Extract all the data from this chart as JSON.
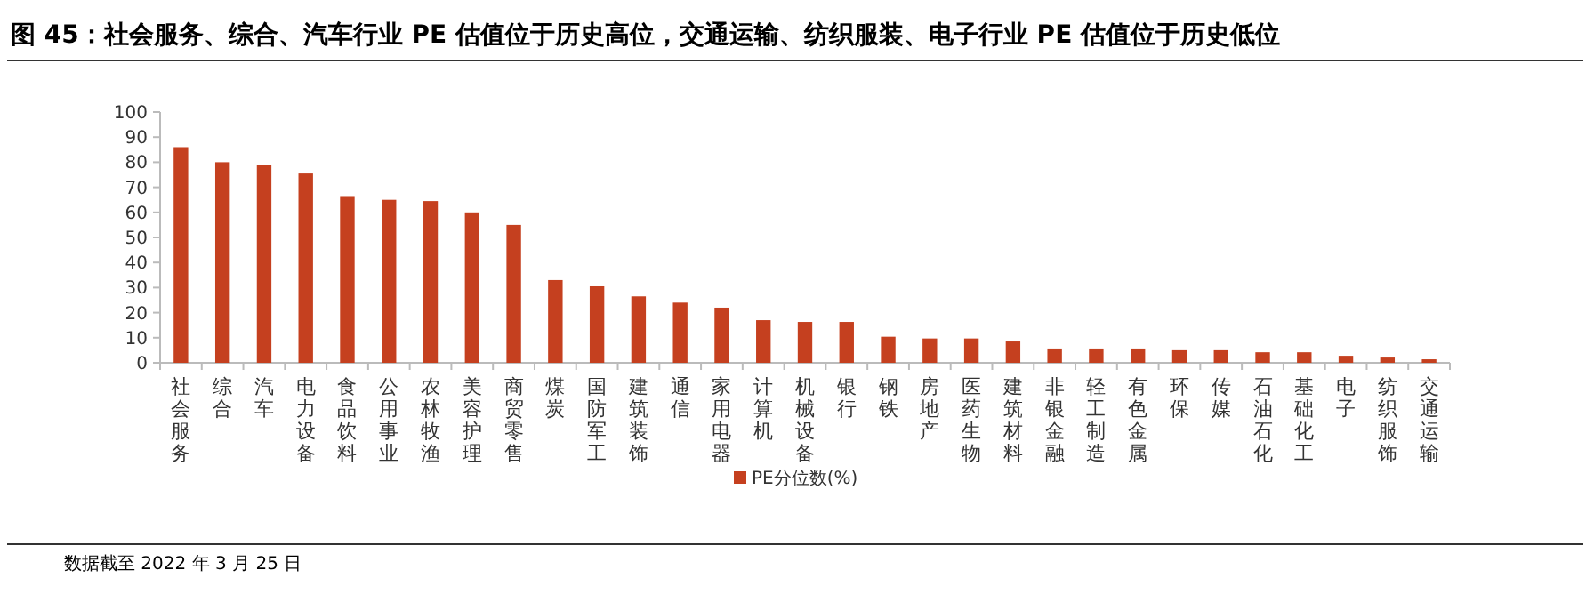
{
  "chart_data": {
    "type": "bar",
    "title": "图 45：社会服务、综合、汽车行业 PE 估值位于历史高位，交通运输、纺织服装、电子行业 PE 估值位于历史低位",
    "categories": [
      "社会服务",
      "综合",
      "汽车",
      "电力设备",
      "食品饮料",
      "公用事业",
      "农林牧渔",
      "美容护理",
      "商贸零售",
      "煤炭",
      "国防军工",
      "建筑装饰",
      "通信",
      "家用电器",
      "计算机",
      "机械设备",
      "银行",
      "钢铁",
      "房地产",
      "医药生物",
      "建筑材料",
      "非银金融",
      "轻工制造",
      "有色金属",
      "环保",
      "传媒",
      "石油石化",
      "基础化工",
      "电子",
      "纺织服饰",
      "交通运输"
    ],
    "series": [
      {
        "name": "PE分位数(%)",
        "color": "#c5401f",
        "values": [
          86,
          80,
          79,
          75.5,
          66.5,
          65,
          64.5,
          60,
          55,
          33,
          30.5,
          26.5,
          24,
          22,
          17,
          16.3,
          16.3,
          10.4,
          9.7,
          9.7,
          8.5,
          5.7,
          5.7,
          5.7,
          5,
          5,
          4.2,
          4.2,
          2.8,
          2.1,
          1.4
        ]
      }
    ],
    "ylim": [
      0,
      100
    ],
    "yticks": [
      0,
      10,
      20,
      30,
      40,
      50,
      60,
      70,
      80,
      90,
      100
    ],
    "legend": "bottom",
    "annotations": [
      "数据截至 2022 年 3 月 25 日"
    ]
  }
}
